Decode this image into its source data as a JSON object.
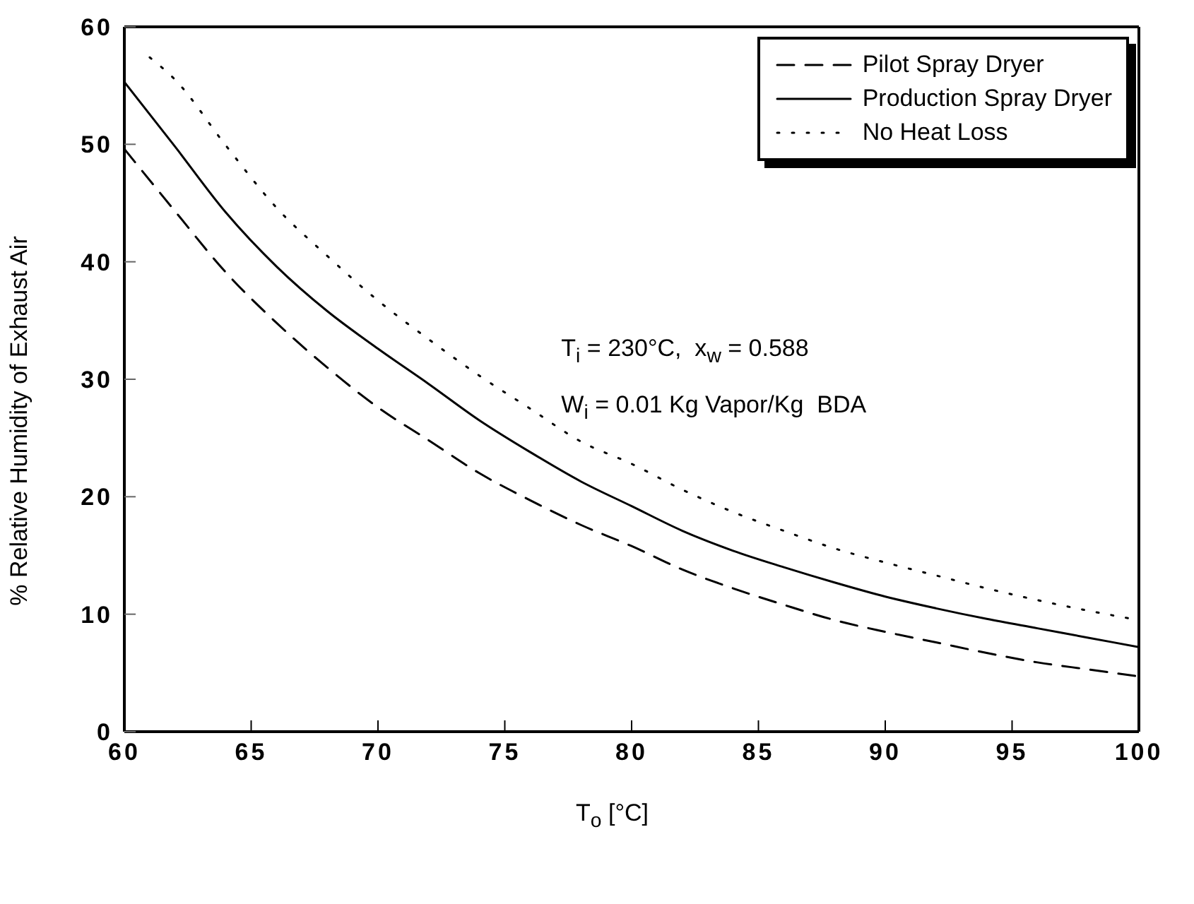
{
  "chart_data": {
    "type": "line",
    "xlabel": "T$_{o}$ [°C]",
    "ylabel": "% Relative Humidity of Exhaust Air",
    "xlim": [
      60,
      100
    ],
    "ylim": [
      0,
      60
    ],
    "xticks": [
      60,
      65,
      70,
      75,
      80,
      85,
      90,
      95,
      100
    ],
    "yticks": [
      0,
      10,
      20,
      30,
      40,
      50,
      60
    ],
    "legend": "top right",
    "annotations": [
      "T$_{i}$ = 230°C,  x$_{w}$ = 0.588",
      "W$_{i}$ = 0.01 Kg Vapor/Kg  BDA"
    ],
    "series": [
      {
        "name": "Pilot Spray Dryer",
        "color": "#000000",
        "line_style": "dashed",
        "x": [
          60,
          62,
          64,
          66,
          68,
          70,
          72,
          74,
          76,
          78,
          80,
          82,
          84,
          86,
          88,
          90,
          92,
          94,
          96,
          98,
          100
        ],
        "values": [
          49.6,
          44.3,
          39.1,
          34.8,
          31.0,
          27.6,
          24.8,
          22.0,
          19.7,
          17.6,
          15.8,
          13.8,
          12.2,
          10.8,
          9.5,
          8.5,
          7.6,
          6.7,
          5.9,
          5.3,
          4.7
        ]
      },
      {
        "name": "Production Spray Dryer",
        "color": "#000000",
        "line_style": "solid",
        "x": [
          60,
          62,
          64,
          66,
          68,
          70,
          72,
          74,
          76,
          78,
          80,
          82,
          84,
          86,
          88,
          90,
          92,
          94,
          96,
          98,
          100
        ],
        "values": [
          55.3,
          49.8,
          44.2,
          39.6,
          35.8,
          32.6,
          29.6,
          26.5,
          23.8,
          21.3,
          19.2,
          17.1,
          15.4,
          14.0,
          12.7,
          11.5,
          10.5,
          9.6,
          8.8,
          8.0,
          7.2
        ]
      },
      {
        "name": "No Heat Loss",
        "color": "#000000",
        "line_style": "dotted",
        "x": [
          61,
          62,
          64,
          66,
          68,
          70,
          72,
          74,
          76,
          78,
          80,
          82,
          84,
          86,
          88,
          90,
          92,
          94,
          96,
          98,
          100
        ],
        "values": [
          57.4,
          55.5,
          49.9,
          44.6,
          40.5,
          36.7,
          33.4,
          30.3,
          27.5,
          24.7,
          22.8,
          20.6,
          18.7,
          17.1,
          15.6,
          14.4,
          13.3,
          12.2,
          11.2,
          10.3,
          9.5
        ]
      }
    ]
  }
}
